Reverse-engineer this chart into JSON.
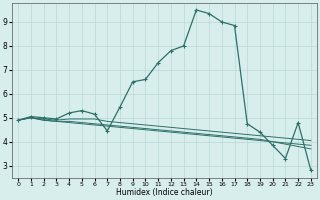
{
  "title": "",
  "xlabel": "Humidex (Indice chaleur)",
  "background_color": "#d8eeed",
  "grid_color": "#b8d8d5",
  "line_color": "#2d7068",
  "xlim": [
    -0.5,
    23.5
  ],
  "ylim": [
    2.5,
    9.8
  ],
  "yticks": [
    3,
    4,
    5,
    6,
    7,
    8,
    9
  ],
  "xticks": [
    0,
    1,
    2,
    3,
    4,
    5,
    6,
    7,
    8,
    9,
    10,
    11,
    12,
    13,
    14,
    15,
    16,
    17,
    18,
    19,
    20,
    21,
    22,
    23
  ],
  "series": [
    [
      4.9,
      5.05,
      5.0,
      4.95,
      5.2,
      5.3,
      5.15,
      4.45,
      5.45,
      6.5,
      6.6,
      7.3,
      7.8,
      8.0,
      9.5,
      9.35,
      9.0,
      8.85,
      4.75,
      4.4,
      3.85,
      3.3,
      4.8,
      2.8
    ],
    [
      4.9,
      5.0,
      4.95,
      4.9,
      4.95,
      4.95,
      4.95,
      4.85,
      4.8,
      4.75,
      4.7,
      4.65,
      4.6,
      4.55,
      4.5,
      4.45,
      4.4,
      4.35,
      4.3,
      4.25,
      4.2,
      4.15,
      4.1,
      4.05
    ],
    [
      4.9,
      5.0,
      4.9,
      4.85,
      4.85,
      4.8,
      4.75,
      4.7,
      4.65,
      4.6,
      4.55,
      4.5,
      4.45,
      4.4,
      4.35,
      4.3,
      4.25,
      4.2,
      4.15,
      4.1,
      4.0,
      3.9,
      3.8,
      3.7
    ],
    [
      4.9,
      5.0,
      4.9,
      4.85,
      4.8,
      4.75,
      4.7,
      4.65,
      4.6,
      4.55,
      4.5,
      4.45,
      4.4,
      4.35,
      4.3,
      4.25,
      4.2,
      4.15,
      4.1,
      4.05,
      4.0,
      3.95,
      3.9,
      3.85
    ]
  ]
}
